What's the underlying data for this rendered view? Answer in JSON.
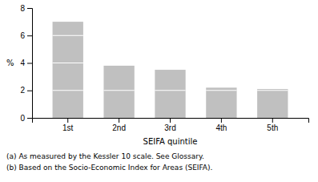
{
  "chart_data": {
    "type": "bar",
    "categories": [
      "1st",
      "2nd",
      "3rd",
      "4th",
      "5th"
    ],
    "values": [
      7.0,
      3.8,
      3.5,
      2.2,
      2.1
    ],
    "color": "#c0c0c0",
    "xlabel": "SEIFA quintile",
    "ylabel": "%",
    "ylim": [
      0,
      8
    ],
    "yticks": [
      0,
      2,
      4,
      6,
      8
    ],
    "grid": false,
    "annotations": [
      "(a) As measured by the Kessler 10 scale. See Glossary.",
      "(b) Based on the Socio-Economic Index for Areas (SEIFA)."
    ]
  }
}
